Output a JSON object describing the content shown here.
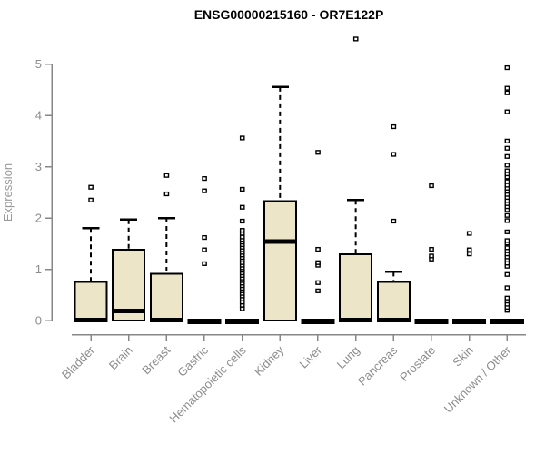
{
  "title": "ENSG00000215160 - OR7E122P",
  "ylabel": "Expression",
  "colors": {
    "box_fill": "#ece5c8",
    "box_border": "#000000",
    "median": "#000000",
    "whisker": "#000000",
    "outlier_fill": "#ffffff",
    "axis": "#878787",
    "tick_text": "#8c8c8c",
    "axis_label": "#9a9a9a",
    "title": "#000000",
    "background": "#ffffff"
  },
  "chart_data": {
    "type": "boxplot",
    "title": "ENSG00000215160 - OR7E122P",
    "xlabel": "",
    "ylabel": "Expression",
    "ylim": [
      0,
      5
    ],
    "yticks": [
      0,
      1,
      2,
      3,
      4,
      5
    ],
    "grid": false,
    "legend": false,
    "categories": [
      "Bladder",
      "Brain",
      "Breast",
      "Gastric",
      "Hematopoietic cells",
      "Kidney",
      "Liver",
      "Lung",
      "Pancreas",
      "Prostate",
      "Skin",
      "Unknown / Other"
    ],
    "boxes": [
      {
        "label": "Bladder",
        "q1": 0,
        "median": 0.03,
        "q3": 0.75,
        "whisker_low": 0,
        "whisker_high": 1.8,
        "outliers": [
          2.35,
          2.6
        ]
      },
      {
        "label": "Brain",
        "q1": 0,
        "median": 0.2,
        "q3": 1.38,
        "whisker_low": 0,
        "whisker_high": 1.97,
        "outliers": []
      },
      {
        "label": "Breast",
        "q1": 0,
        "median": 0.03,
        "q3": 0.91,
        "whisker_low": 0,
        "whisker_high": 2.0,
        "outliers": [
          2.47,
          2.83
        ]
      },
      {
        "label": "Gastric",
        "q1": 0,
        "median": 0,
        "q3": 0,
        "whisker_low": 0,
        "whisker_high": 0,
        "outliers": [
          1.11,
          1.38,
          1.62,
          2.53,
          2.77
        ]
      },
      {
        "label": "Hematopoietic cells",
        "q1": 0,
        "median": 0,
        "q3": 0,
        "whisker_low": 0,
        "whisker_high": 0,
        "outliers": [
          0.23,
          0.3,
          0.36,
          0.42,
          0.48,
          0.53,
          0.58,
          0.63,
          0.68,
          0.73,
          0.78,
          0.83,
          0.88,
          0.93,
          0.98,
          1.03,
          1.08,
          1.13,
          1.18,
          1.23,
          1.28,
          1.33,
          1.38,
          1.43,
          1.48,
          1.53,
          1.58,
          1.63,
          1.7,
          1.76,
          1.94,
          2.21,
          2.56,
          3.56
        ]
      },
      {
        "label": "Kidney",
        "q1": 0,
        "median": 1.56,
        "q3": 2.33,
        "whisker_low": 0,
        "whisker_high": 4.55,
        "outliers": []
      },
      {
        "label": "Liver",
        "q1": 0,
        "median": 0,
        "q3": 0,
        "whisker_low": 0,
        "whisker_high": 0,
        "outliers": [
          0.58,
          0.74,
          1.08,
          1.13,
          1.39,
          3.28
        ]
      },
      {
        "label": "Lung",
        "q1": 0,
        "median": 0.03,
        "q3": 1.29,
        "whisker_low": 0,
        "whisker_high": 2.35,
        "outliers": [
          5.49
        ]
      },
      {
        "label": "Pancreas",
        "q1": 0,
        "median": 0.03,
        "q3": 0.75,
        "whisker_low": 0,
        "whisker_high": 0.95,
        "outliers": [
          1.94,
          3.24,
          3.78
        ]
      },
      {
        "label": "Prostate",
        "q1": 0,
        "median": 0,
        "q3": 0,
        "whisker_low": 0,
        "whisker_high": 0,
        "outliers": [
          1.2,
          1.26,
          1.39,
          2.63
        ]
      },
      {
        "label": "Skin",
        "q1": 0,
        "median": 0,
        "q3": 0,
        "whisker_low": 0,
        "whisker_high": 0,
        "outliers": [
          1.3,
          1.38,
          1.7
        ]
      },
      {
        "label": "Unknown / Other",
        "q1": 0,
        "median": 0,
        "q3": 0,
        "whisker_low": 0,
        "whisker_high": 0,
        "outliers": [
          0.2,
          0.26,
          0.32,
          0.38,
          0.44,
          0.64,
          0.9,
          1.06,
          1.12,
          1.18,
          1.24,
          1.3,
          1.36,
          1.42,
          1.51,
          1.56,
          1.73,
          1.95,
          2.05,
          2.16,
          2.22,
          2.28,
          2.34,
          2.4,
          2.46,
          2.52,
          2.58,
          2.64,
          2.71,
          2.8,
          2.86,
          2.92,
          3.03,
          3.2,
          3.36,
          3.5,
          4.07,
          4.44,
          4.53,
          4.93
        ]
      }
    ]
  }
}
